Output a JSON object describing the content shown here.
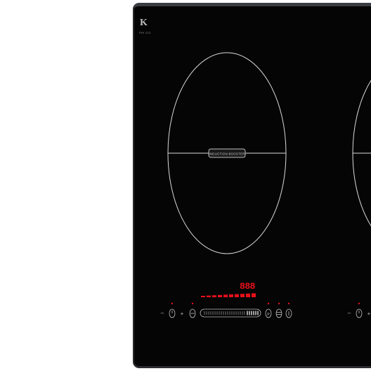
{
  "brand": {
    "logo_letter": "K",
    "model": "PIH 213"
  },
  "zone_left": {
    "badge_label": "INDUCTION BOOSTER"
  },
  "display": {
    "readout": "888",
    "power_level": 1.0
  },
  "controls_left": {
    "minus": "–",
    "plus": "+"
  },
  "controls_right": {
    "minus": "–",
    "plus": "+"
  },
  "colors": {
    "glass": "#050505",
    "frame": "#3a3d42",
    "zone_outline": "#d9d9d9",
    "indicator_red": "#e8101a",
    "control_grey": "#bfbfbf"
  }
}
